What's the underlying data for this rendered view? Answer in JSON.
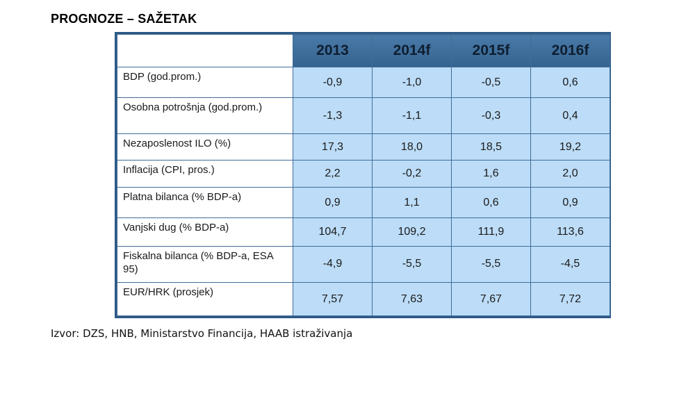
{
  "title": "PROGNOZE – SAŽETAK",
  "table": {
    "columns": [
      "2013",
      "2014f",
      "2015f",
      "2016f"
    ],
    "rows": [
      {
        "label": "BDP (god.prom.)",
        "values": [
          "-0,9",
          "-1,0",
          "-0,5",
          "0,6"
        ]
      },
      {
        "label": "Osobna potrošnja (god.prom.)",
        "values": [
          "-1,3",
          "-1,1",
          "-0,3",
          "0,4"
        ]
      },
      {
        "label": "Nezaposlenost ILO (%)",
        "values": [
          "17,3",
          "18,0",
          "18,5",
          "19,2"
        ]
      },
      {
        "label": "Inflacija (CPI, pros.)",
        "values": [
          "2,2",
          "-0,2",
          "1,6",
          "2,0"
        ]
      },
      {
        "label": "Platna bilanca (% BDP-a)",
        "values": [
          "0,9",
          "1,1",
          "0,6",
          "0,9"
        ]
      },
      {
        "label": "Vanjski dug (% BDP-a)",
        "values": [
          "104,7",
          "109,2",
          "111,9",
          "113,6"
        ]
      },
      {
        "label": "Fiskalna bilanca (% BDP-a, ESA 95)",
        "values": [
          "-4,9",
          "-5,5",
          "-5,5",
          "-4,5"
        ]
      },
      {
        "label": "EUR/HRK (prosjek)",
        "values": [
          "7,57",
          "7,63",
          "7,67",
          "7,72"
        ]
      }
    ]
  },
  "source": "Izvor: DZS, HNB, Ministarstvo Financija, HAAB istraživanja",
  "colors": {
    "header_bg": "#3d6b98",
    "value_cell_bg": "#bcdcf7",
    "border": "#2e5a86"
  }
}
